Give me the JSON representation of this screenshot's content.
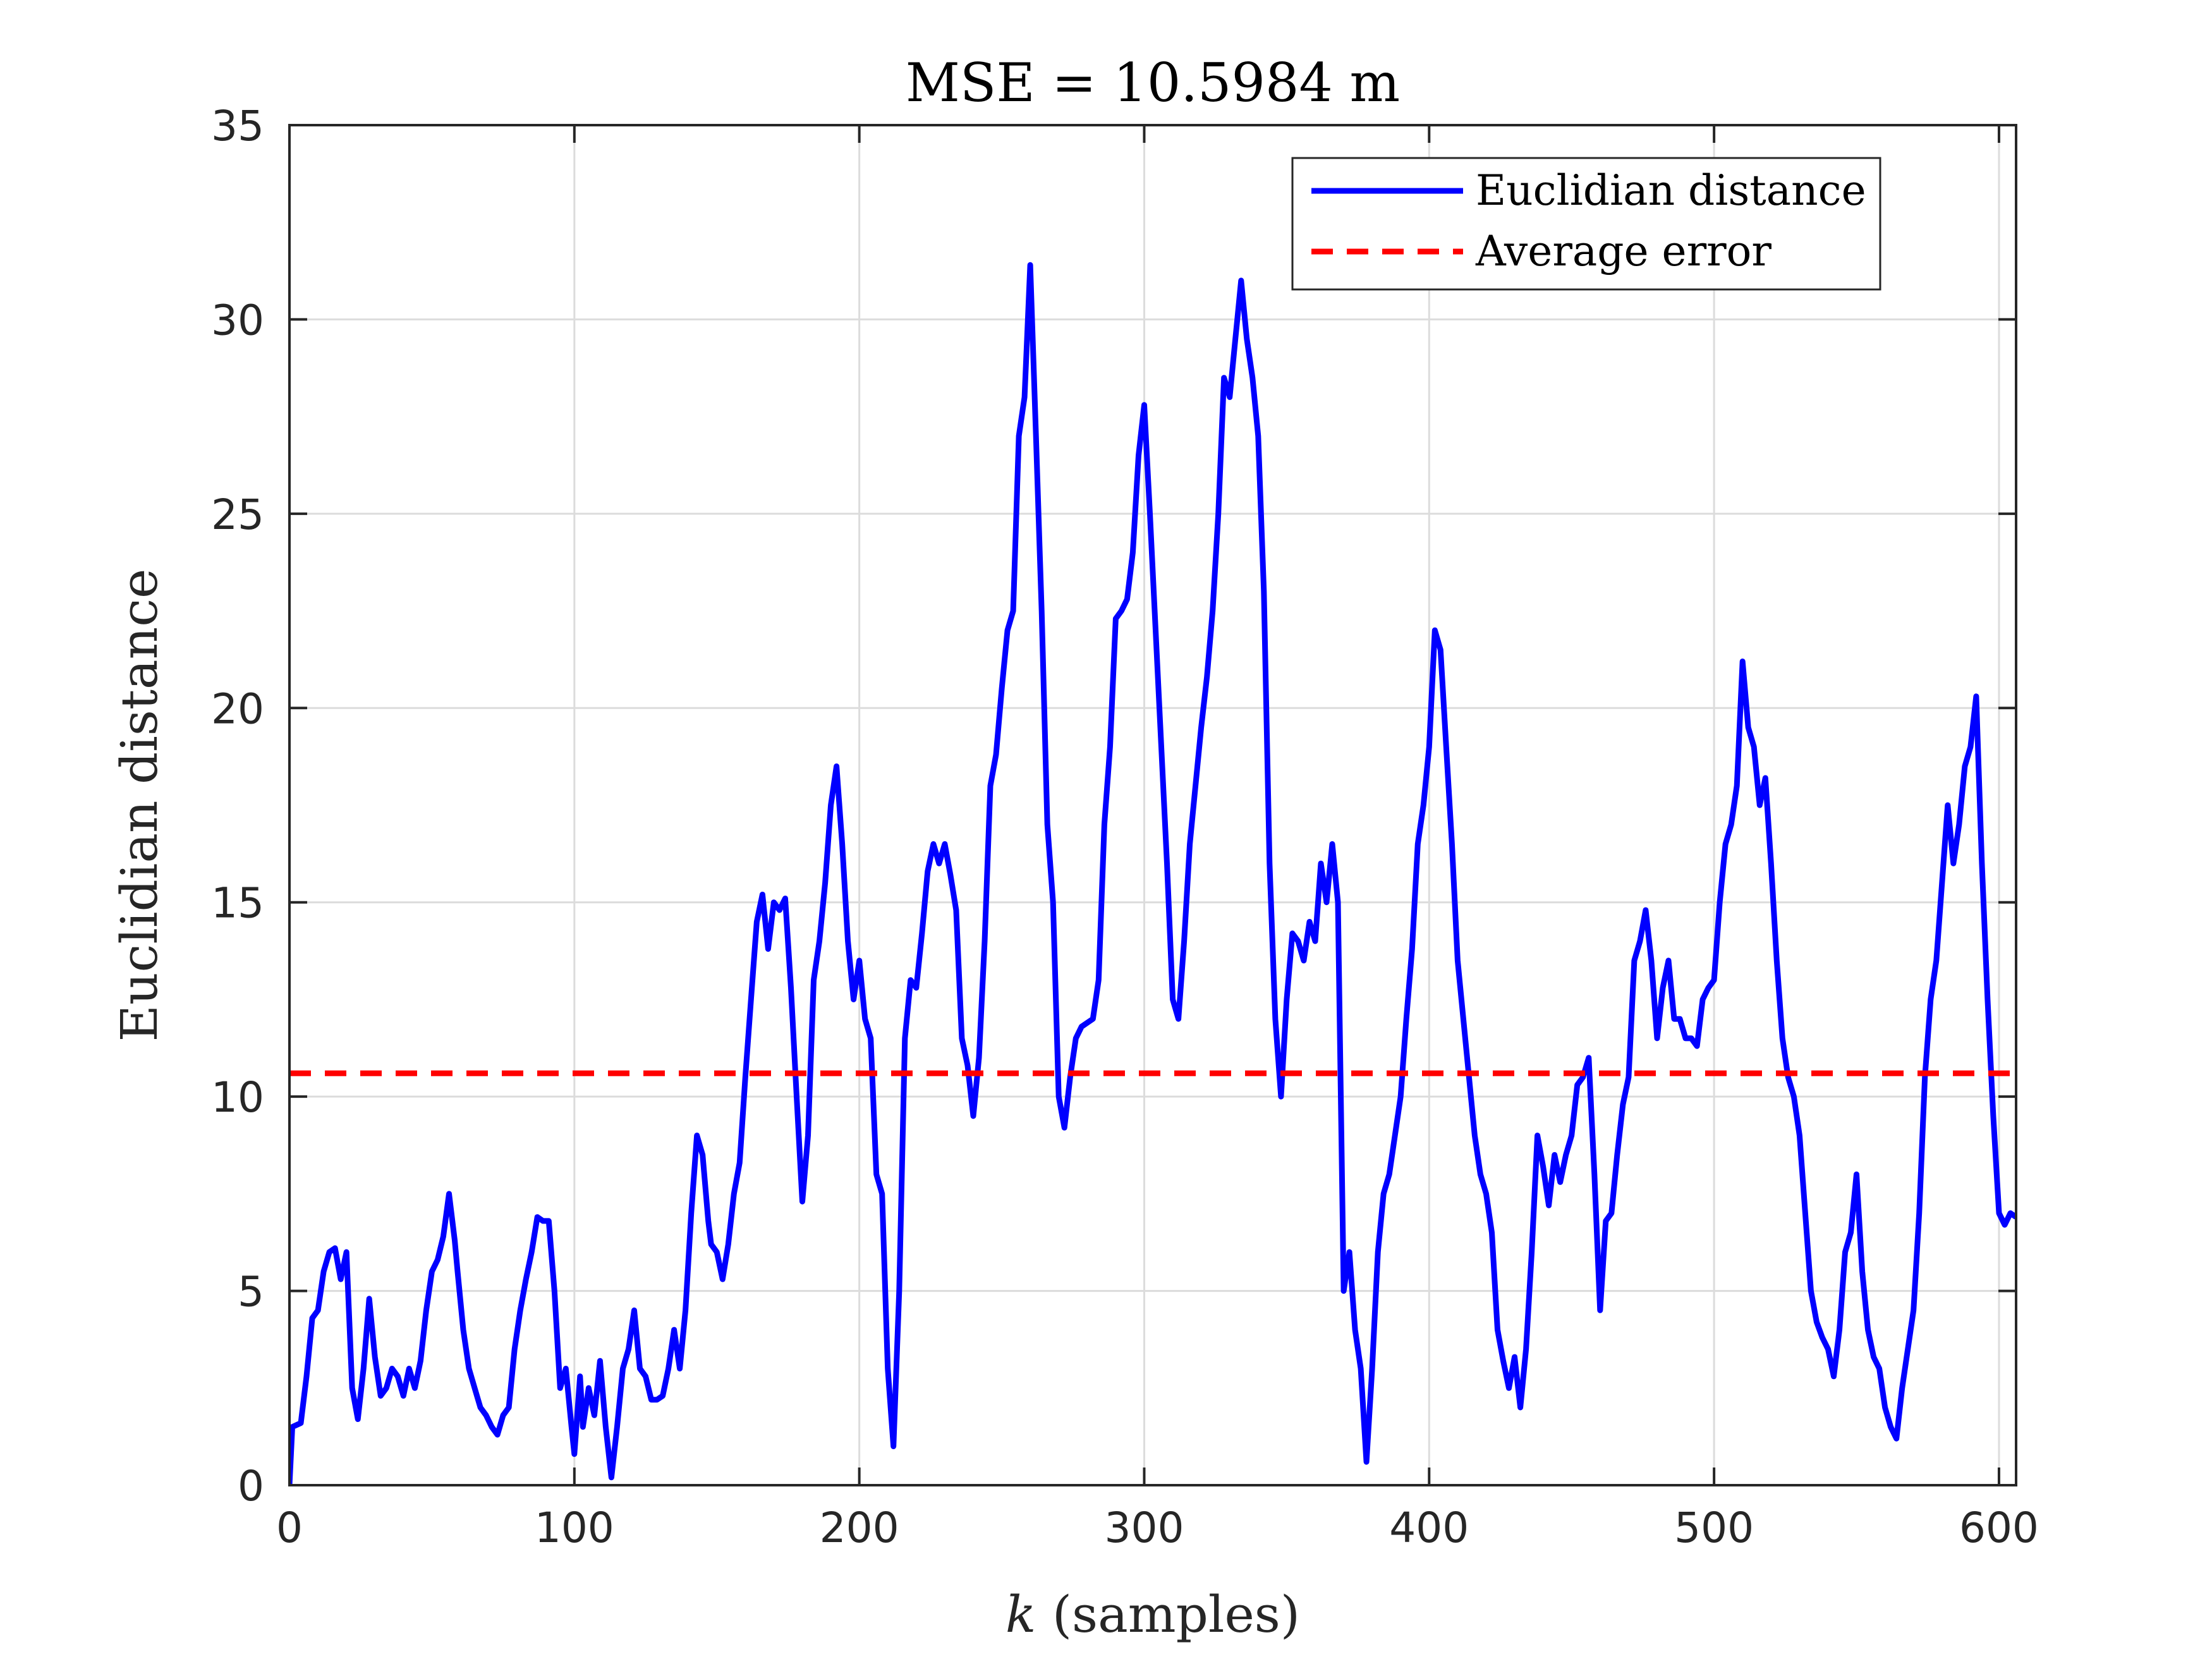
{
  "chart_data": {
    "type": "line",
    "title": "MSE = 10.5984 m",
    "xlabel_var": "k",
    "xlabel_rest": " (samples)",
    "ylabel": "Euclidian distance",
    "xlim": [
      0,
      606
    ],
    "ylim": [
      0,
      35
    ],
    "xticks": [
      0,
      100,
      200,
      300,
      400,
      500,
      600
    ],
    "yticks": [
      0,
      5,
      10,
      15,
      20,
      25,
      30,
      35
    ],
    "grid": true,
    "legend_position": "top-right",
    "series": [
      {
        "name": "Euclidian distance",
        "color": "#0000ff",
        "style": "solid",
        "x": [
          0,
          1,
          4,
          6,
          8,
          10,
          12,
          14,
          16,
          18,
          20,
          22,
          24,
          26,
          28,
          30,
          32,
          34,
          36,
          38,
          40,
          42,
          44,
          46,
          48,
          50,
          52,
          54,
          56,
          58,
          59,
          61,
          63,
          65,
          67,
          69,
          71,
          73,
          75,
          77,
          79,
          81,
          83,
          85,
          87,
          89,
          91,
          93,
          95,
          97,
          99,
          100,
          102,
          103,
          105,
          107,
          109,
          111,
          113,
          115,
          117,
          119,
          121,
          123,
          125,
          127,
          129,
          131,
          133,
          135,
          137,
          139,
          141,
          143,
          145,
          147,
          148,
          150,
          152,
          154,
          156,
          158,
          160,
          162,
          164,
          166,
          168,
          170,
          172,
          174,
          176,
          178,
          180,
          182,
          184,
          186,
          188,
          190,
          192,
          194,
          196,
          198,
          200,
          202,
          204,
          206,
          208,
          210,
          212,
          214,
          216,
          218,
          220,
          222,
          224,
          226,
          228,
          230,
          232,
          234,
          236,
          238,
          240,
          242,
          244,
          246,
          248,
          250,
          252,
          254,
          256,
          258,
          260,
          262,
          264,
          266,
          268,
          270,
          272,
          274,
          276,
          278,
          280,
          282,
          284,
          286,
          288,
          290,
          292,
          294,
          296,
          298,
          300,
          302,
          304,
          306,
          308,
          310,
          312,
          314,
          316,
          318,
          320,
          322,
          324,
          326,
          328,
          330,
          332,
          334,
          336,
          338,
          340,
          342,
          344,
          346,
          348,
          350,
          352,
          354,
          356,
          358,
          360,
          362,
          364,
          366,
          368,
          370,
          372,
          374,
          376,
          378,
          380,
          382,
          384,
          386,
          388,
          390,
          392,
          394,
          396,
          398,
          400,
          402,
          404,
          406,
          408,
          410,
          412,
          414,
          416,
          418,
          420,
          422,
          424,
          426,
          428,
          430,
          432,
          434,
          436,
          438,
          440,
          442,
          444,
          446,
          448,
          450,
          452,
          454,
          456,
          458,
          460,
          462,
          464,
          466,
          468,
          470,
          472,
          474,
          476,
          478,
          480,
          482,
          484,
          486,
          488,
          490,
          492,
          494,
          496,
          498,
          500,
          502,
          504,
          506,
          508,
          510,
          512,
          514,
          516,
          518,
          520,
          522,
          524,
          526,
          528,
          530,
          532,
          534,
          536,
          538,
          540,
          542,
          544,
          546,
          548,
          550,
          552,
          554,
          556,
          558,
          560,
          562,
          564,
          566,
          568,
          570,
          572,
          574,
          576,
          578,
          580,
          582,
          584,
          586,
          588,
          590,
          592,
          594,
          596,
          598,
          600,
          602,
          604,
          606
        ],
        "y": [
          0,
          1.5,
          1.6,
          2.8,
          4.3,
          4.5,
          5.5,
          6.0,
          6.1,
          5.3,
          6.0,
          2.5,
          1.7,
          3.0,
          4.8,
          3.3,
          2.3,
          2.5,
          3.0,
          2.8,
          2.3,
          3.0,
          2.5,
          3.2,
          4.5,
          5.5,
          5.8,
          6.4,
          7.5,
          6.3,
          5.5,
          4.0,
          3.0,
          2.5,
          2.0,
          1.8,
          1.5,
          1.3,
          1.8,
          2.0,
          3.5,
          4.5,
          5.3,
          6.0,
          6.9,
          6.8,
          6.8,
          5.0,
          2.5,
          3.0,
          1.5,
          0.8,
          2.8,
          1.5,
          2.5,
          1.8,
          3.2,
          1.5,
          0.2,
          1.5,
          3.0,
          3.5,
          4.5,
          3.0,
          2.8,
          2.2,
          2.2,
          2.3,
          3.0,
          4.0,
          3.0,
          4.5,
          7.0,
          9.0,
          8.5,
          6.8,
          6.2,
          6.0,
          5.3,
          6.2,
          7.5,
          8.3,
          10.5,
          12.5,
          14.5,
          15.2,
          13.8,
          15.0,
          14.8,
          15.1,
          12.8,
          10.0,
          7.3,
          9.0,
          13.0,
          14.0,
          15.5,
          17.5,
          18.5,
          16.5,
          14.0,
          12.5,
          13.5,
          12.0,
          11.5,
          8.0,
          7.5,
          3.0,
          1.0,
          5.0,
          11.5,
          13.0,
          12.8,
          14.2,
          15.8,
          16.5,
          16.0,
          16.5,
          15.7,
          14.8,
          11.5,
          10.8,
          9.5,
          11.0,
          14.0,
          18.0,
          18.8,
          20.5,
          22.0,
          22.5,
          27.0,
          28.0,
          31.4,
          27.0,
          22.5,
          17.0,
          15.0,
          10.0,
          9.2,
          10.5,
          11.5,
          11.8,
          11.9,
          12.0,
          13.0,
          17.0,
          19.0,
          22.3,
          22.5,
          22.8,
          24.0,
          26.5,
          27.8,
          25.0,
          22.0,
          19.0,
          16.0,
          12.5,
          12.0,
          14.0,
          16.5,
          18.0,
          19.5,
          20.8,
          22.5,
          25.0,
          28.5,
          28.0,
          29.5,
          31.0,
          29.5,
          28.5,
          27.0,
          23.0,
          16.0,
          12.0,
          10.0,
          12.5,
          14.2,
          14.0,
          13.5,
          14.5,
          14.0,
          16.0,
          15.0,
          16.5,
          15.0,
          5.0,
          6.0,
          4.0,
          3.0,
          0.6,
          3.0,
          6.0,
          7.5,
          8.0,
          9.0,
          10.0,
          12.0,
          13.8,
          16.5,
          17.5,
          19.0,
          22.0,
          21.5,
          19.0,
          16.5,
          13.5,
          12.0,
          10.5,
          9.0,
          8.0,
          7.5,
          6.5,
          4.0,
          3.2,
          2.5,
          3.3,
          2.0,
          3.5,
          6.0,
          9.0,
          8.2,
          7.2,
          8.5,
          7.8,
          8.5,
          9.0,
          10.3,
          10.5,
          11.0,
          8.0,
          4.5,
          6.8,
          7.0,
          8.5,
          9.8,
          10.5,
          13.5,
          14.0,
          14.8,
          13.5,
          11.5,
          12.8,
          13.5,
          12.0,
          12.0,
          11.5,
          11.5,
          11.3,
          12.5,
          12.8,
          13.0,
          15.0,
          16.5,
          17.0,
          18.0,
          21.2,
          19.5,
          19.0,
          17.5,
          18.2,
          16.0,
          13.5,
          11.5,
          10.5,
          10.0,
          9.0,
          7.0,
          5.0,
          4.2,
          3.8,
          3.5,
          2.8,
          4.0,
          6.0,
          6.5,
          8.0,
          5.5,
          4.0,
          3.3,
          3.0,
          2.0,
          1.5,
          1.2,
          2.5,
          3.5,
          4.5,
          7.0,
          10.5,
          12.5,
          13.5,
          15.5,
          17.5,
          16.0,
          17.0,
          18.5,
          19.0,
          20.3,
          16.0,
          12.5,
          9.5,
          7.0,
          6.7,
          7.0,
          6.9
        ]
      },
      {
        "name": "Average error",
        "color": "#ff0000",
        "style": "dashed",
        "x": [
          0,
          606
        ],
        "y": [
          10.5984,
          10.5984
        ]
      }
    ]
  }
}
